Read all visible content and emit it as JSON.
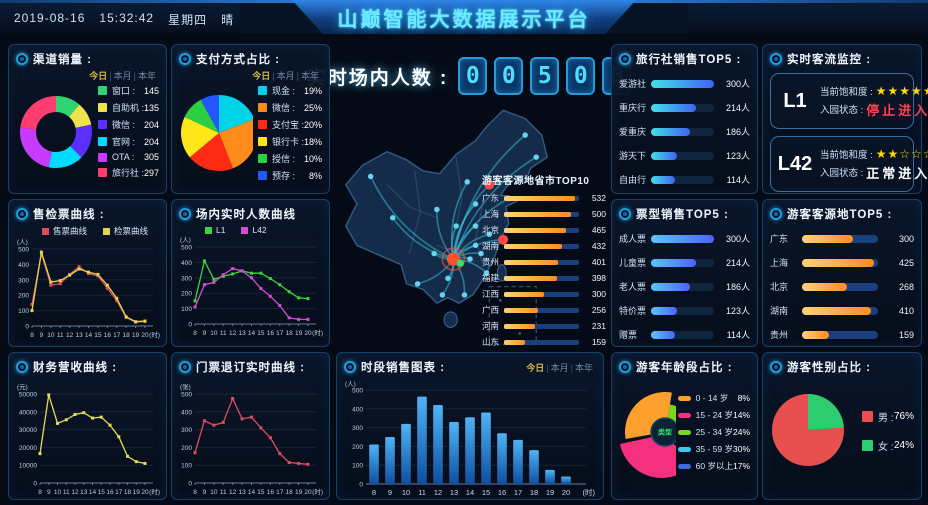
{
  "header": {
    "date": "2019-08-16",
    "time": "15:32:42",
    "weekday": "星期四",
    "weather": "晴",
    "title": "山巅智能大数据展示平台"
  },
  "tabs": {
    "today": "今日",
    "month": "本月",
    "year": "本年"
  },
  "counter": {
    "label": "实时场内人数 :",
    "digits": [
      "0",
      "0",
      "5",
      "0",
      "0"
    ]
  },
  "panels": {
    "channel_sales": {
      "title": "渠道销量 :"
    },
    "payment_share": {
      "title": "支付方式占比 :"
    },
    "ticket_curves": {
      "title": "售检票曲线 :"
    },
    "inside_curves": {
      "title": "场内实时人数曲线"
    },
    "finance_curve": {
      "title": "财务营收曲线 :"
    },
    "refund_curve": {
      "title": "门票退订实时曲线 :"
    },
    "hour_sales": {
      "title": "时段销售图表 :"
    },
    "agency_top5": {
      "title": "旅行社销售TOP5 :"
    },
    "monitor": {
      "title": "实时客流监控 :",
      "rows": [
        {
          "line": "L1",
          "saturation_label": "当前饱和度 :",
          "stars_filled": 5,
          "stars_total": 5,
          "status_label": "入园状态 :",
          "status": "停止进入",
          "status_color": "#ff4150"
        },
        {
          "line": "L42",
          "saturation_label": "当前饱和度 :",
          "stars_filled": 2,
          "stars_total": 5,
          "status_label": "入园状态 :",
          "status": "正常进入",
          "status_color": "#ffffff"
        }
      ]
    },
    "tickettype_top5": {
      "title": "票型销售TOP5 :"
    },
    "origin_top5": {
      "title": "游客客源地TOP5 :"
    },
    "age_share": {
      "title": "游客年龄段占比 :"
    },
    "gender_share": {
      "title": "游客性别占比 :"
    },
    "map_top10": {
      "title": "游客客源地省市TOP10"
    }
  },
  "chart_data": [
    {
      "id": "channel_sales",
      "type": "pie",
      "subtype": "donut",
      "title": "渠道销量",
      "categories": [
        "窗口",
        "自助机",
        "微信",
        "官网",
        "OTA",
        "旅行社"
      ],
      "values": [
        145,
        135,
        204,
        204,
        305,
        297
      ],
      "colors": [
        "#2fd573",
        "#f0e24a",
        "#5a2fff",
        "#00dcff",
        "#c63bff",
        "#ff3d6e"
      ],
      "legend_position": "right"
    },
    {
      "id": "payment_share",
      "type": "pie",
      "title": "支付方式占比",
      "unit": "%",
      "categories": [
        "现金",
        "微信",
        "支付宝",
        "银行卡",
        "授信",
        "预存"
      ],
      "values": [
        19,
        25,
        20,
        18,
        10,
        8
      ],
      "colors": [
        "#00d2e8",
        "#ff8c1a",
        "#ff2a14",
        "#ffe619",
        "#2bcf44",
        "#2257ff"
      ],
      "legend_position": "right"
    },
    {
      "id": "ticket_curves",
      "type": "line",
      "title": "售检票曲线",
      "x": [
        8,
        9,
        10,
        11,
        12,
        13,
        14,
        15,
        16,
        17,
        18,
        19,
        20
      ],
      "x_unit": "(时)",
      "ylabel": "(人)",
      "ylim": [
        0,
        500
      ],
      "grid": true,
      "legend_position": "top",
      "series": [
        {
          "name": "售票曲线",
          "color": "#d94f5c",
          "values": [
            140,
            470,
            265,
            275,
            335,
            385,
            340,
            325,
            245,
            165,
            55,
            25,
            30
          ]
        },
        {
          "name": "检票曲线",
          "color": "#e5d44e",
          "values": [
            100,
            480,
            285,
            295,
            330,
            370,
            350,
            335,
            265,
            180,
            60,
            28,
            32
          ]
        }
      ]
    },
    {
      "id": "inside_curves",
      "type": "line",
      "title": "场内实时人数曲线",
      "x": [
        8,
        9,
        10,
        11,
        12,
        13,
        14,
        15,
        16,
        17,
        18,
        19,
        20
      ],
      "x_unit": "(时)",
      "ylabel": "(人)",
      "ylim": [
        0,
        500
      ],
      "grid": true,
      "legend_position": "top",
      "series": [
        {
          "name": "L1",
          "color": "#3fd23f",
          "values": [
            150,
            410,
            290,
            310,
            325,
            345,
            330,
            330,
            295,
            255,
            210,
            170,
            165
          ]
        },
        {
          "name": "L42",
          "color": "#d24fd2",
          "values": [
            110,
            255,
            270,
            320,
            360,
            345,
            300,
            230,
            180,
            120,
            40,
            30,
            30
          ]
        }
      ]
    },
    {
      "id": "finance_curve",
      "type": "line",
      "title": "财务营收曲线",
      "x": [
        8,
        9,
        10,
        11,
        12,
        13,
        14,
        15,
        16,
        17,
        18,
        19,
        20
      ],
      "x_unit": "(时)",
      "ylabel": "(元)",
      "ylim": [
        0,
        50000
      ],
      "grid": true,
      "series": [
        {
          "name": "财务营收",
          "color": "#e3dd55",
          "values": [
            16500,
            49500,
            33500,
            35500,
            38500,
            39500,
            36500,
            37000,
            32500,
            26000,
            15000,
            12000,
            11000
          ]
        }
      ]
    },
    {
      "id": "refund_curve",
      "type": "line",
      "title": "门票退订实时曲线",
      "x": [
        8,
        9,
        10,
        11,
        12,
        13,
        14,
        15,
        16,
        17,
        18,
        19,
        20
      ],
      "x_unit": "(时)",
      "ylabel": "(张)",
      "ylim": [
        0,
        500
      ],
      "grid": true,
      "series": [
        {
          "name": "门票退订",
          "color": "#dd4b60",
          "values": [
            170,
            350,
            325,
            340,
            475,
            360,
            370,
            310,
            255,
            165,
            115,
            110,
            105
          ]
        }
      ]
    },
    {
      "id": "hour_sales",
      "type": "bar",
      "title": "时段销售图表",
      "categories": [
        8,
        9,
        10,
        11,
        12,
        13,
        14,
        15,
        16,
        17,
        18,
        19,
        20
      ],
      "x_unit": "(时)",
      "ylabel": "(人)",
      "ylim": [
        0,
        500
      ],
      "grid": true,
      "values": [
        210,
        250,
        320,
        465,
        420,
        330,
        355,
        380,
        270,
        235,
        180,
        75,
        40
      ],
      "bar_colors": [
        "#4fb4f5",
        "#0f4f9e"
      ]
    },
    {
      "id": "agency_top5",
      "type": "hbar",
      "title": "旅行社销售TOP5",
      "unit": "人",
      "max": 300,
      "categories": [
        "爱游社",
        "重庆行",
        "爱重庆",
        "游天下",
        "自由行"
      ],
      "values": [
        300,
        214,
        186,
        123,
        114
      ]
    },
    {
      "id": "tickettype_top5",
      "type": "hbar",
      "title": "票型销售TOP5",
      "unit": "人",
      "max": 300,
      "categories": [
        "成人票",
        "儿童票",
        "老人票",
        "特价票",
        "赠票"
      ],
      "values": [
        300,
        214,
        186,
        123,
        114
      ]
    },
    {
      "id": "origin_top5",
      "type": "hbar",
      "title": "游客客源地TOP5",
      "unit": "",
      "max": 450,
      "categories": [
        "广东",
        "上海",
        "北京",
        "湖南",
        "贵州"
      ],
      "values": [
        300,
        425,
        268,
        410,
        159
      ]
    },
    {
      "id": "origin_top10",
      "type": "hbar",
      "title": "游客客源地省市TOP10",
      "unit": "",
      "max": 560,
      "categories": [
        "广东",
        "上海",
        "北京",
        "湖南",
        "贵州",
        "福建",
        "江西",
        "广西",
        "河南",
        "山东"
      ],
      "values": [
        532,
        500,
        465,
        432,
        401,
        398,
        300,
        256,
        231,
        159
      ]
    },
    {
      "id": "age_share",
      "type": "pie",
      "subtype": "rose",
      "title": "游客年龄段占比",
      "unit": "%",
      "categories": [
        "0 - 14 岁",
        "15 - 24 岁",
        "25 - 34 岁",
        "35 - 59 岁",
        "60 岁以上"
      ],
      "values": [
        8,
        14,
        24,
        30,
        17
      ],
      "colors": [
        "#ffa02e",
        "#f5317f",
        "#7ed321",
        "#3ec9f0",
        "#4169e1"
      ],
      "center_label": "类型"
    },
    {
      "id": "gender_share",
      "type": "pie",
      "title": "游客性别占比",
      "unit": "%",
      "categories": [
        "男",
        "女"
      ],
      "values": [
        76,
        24
      ],
      "colors": [
        "#e85050",
        "#2ecc71"
      ]
    }
  ]
}
